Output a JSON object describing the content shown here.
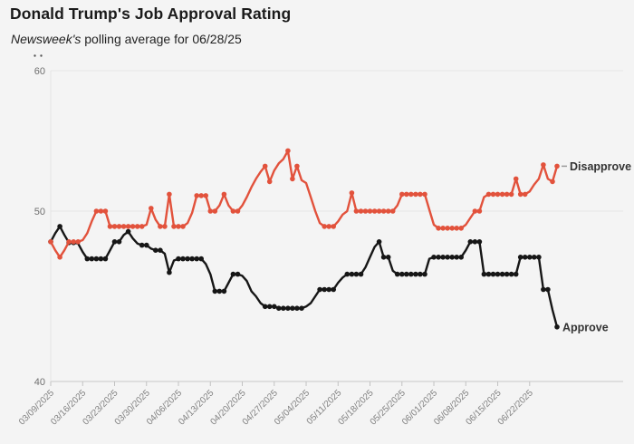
{
  "header": {
    "title": "Donald Trump's Job Approval Rating",
    "source_italic": "Newsweek's",
    "subtitle_rest": " polling average for 06/28/25"
  },
  "chart_data": {
    "type": "line",
    "title": "Donald Trump's Job Approval Rating",
    "subtitle": "Newsweek's polling average for 06/28/25",
    "start_date": "03/09/2025",
    "end_date": "06/28/2025",
    "frequency": "daily",
    "ylim": [
      40,
      60
    ],
    "y_ticks": [
      40,
      50,
      60
    ],
    "y_tick_labels": [
      "40",
      "50",
      "60"
    ],
    "grid": "horizontal",
    "legend_position": "end-of-line",
    "x_tick_labels": [
      "03/09/2025",
      "03/16/2025",
      "03/23/2025",
      "03/30/2025",
      "04/06/2025",
      "04/13/2025",
      "04/20/2025",
      "04/27/2025",
      "05/04/2025",
      "05/11/2025",
      "05/18/2025",
      "05/25/2025",
      "06/01/2025",
      "06/08/2025",
      "06/15/2025",
      "06/22/2025"
    ],
    "series": [
      {
        "name": "Approve",
        "end_label": "Approve",
        "color": "#161616",
        "values": [
          48.2,
          48.7,
          49.1,
          48.6,
          48.15,
          48.15,
          48.1,
          47.6,
          47.2,
          47.2,
          47.2,
          47.2,
          47.2,
          47.7,
          48.2,
          48.2,
          48.6,
          48.8,
          48.4,
          48.1,
          48.0,
          48.0,
          47.8,
          47.7,
          47.7,
          47.5,
          46.4,
          47.1,
          47.2,
          47.2,
          47.2,
          47.2,
          47.2,
          47.2,
          46.9,
          46.3,
          45.3,
          45.3,
          45.3,
          45.8,
          46.3,
          46.3,
          46.2,
          45.9,
          45.3,
          45.0,
          44.6,
          44.4,
          44.4,
          44.4,
          44.3,
          44.3,
          44.3,
          44.3,
          44.3,
          44.3,
          44.4,
          44.6,
          45.0,
          45.4,
          45.4,
          45.4,
          45.4,
          45.8,
          46.1,
          46.3,
          46.3,
          46.3,
          46.3,
          46.7,
          47.3,
          47.9,
          48.2,
          47.3,
          47.3,
          46.5,
          46.3,
          46.3,
          46.3,
          46.3,
          46.3,
          46.3,
          46.3,
          47.2,
          47.3,
          47.3,
          47.3,
          47.3,
          47.3,
          47.3,
          47.3,
          47.7,
          48.2,
          48.2,
          48.2,
          46.3,
          46.3,
          46.3,
          46.3,
          46.3,
          46.3,
          46.3,
          46.3,
          47.3,
          47.3,
          47.3,
          47.3,
          47.3,
          45.4,
          45.4,
          44.2,
          43.2
        ]
      },
      {
        "name": "Disapprove",
        "end_label": "Disapprove",
        "color": "#e2523c",
        "values": [
          48.2,
          47.7,
          47.3,
          47.7,
          48.2,
          48.2,
          48.2,
          48.3,
          48.7,
          49.4,
          50.0,
          50.0,
          50.0,
          49.1,
          49.1,
          49.1,
          49.1,
          49.1,
          49.1,
          49.1,
          49.1,
          49.2,
          50.2,
          49.5,
          49.1,
          49.1,
          51.2,
          49.1,
          49.1,
          49.1,
          49.3,
          49.9,
          51.1,
          51.1,
          51.1,
          50.0,
          50.0,
          50.4,
          51.2,
          50.4,
          50.0,
          50.0,
          50.4,
          51.0,
          51.7,
          52.3,
          52.8,
          53.2,
          52.1,
          52.9,
          53.4,
          53.7,
          54.3,
          52.3,
          53.2,
          52.2,
          52.0,
          51.0,
          50.0,
          49.3,
          49.1,
          49.1,
          49.1,
          49.4,
          49.8,
          50.0,
          51.3,
          50.0,
          50.0,
          50.0,
          50.0,
          50.0,
          50.0,
          50.0,
          50.0,
          50.0,
          50.4,
          51.2,
          51.2,
          51.2,
          51.2,
          51.2,
          51.2,
          50.1,
          49.2,
          49.0,
          49.0,
          49.0,
          49.0,
          49.0,
          49.0,
          49.2,
          49.6,
          50.0,
          50.0,
          51.0,
          51.2,
          51.2,
          51.2,
          51.2,
          51.2,
          51.2,
          52.3,
          51.2,
          51.2,
          51.4,
          51.9,
          52.3,
          53.3,
          52.3,
          52.1,
          53.2
        ]
      }
    ]
  }
}
